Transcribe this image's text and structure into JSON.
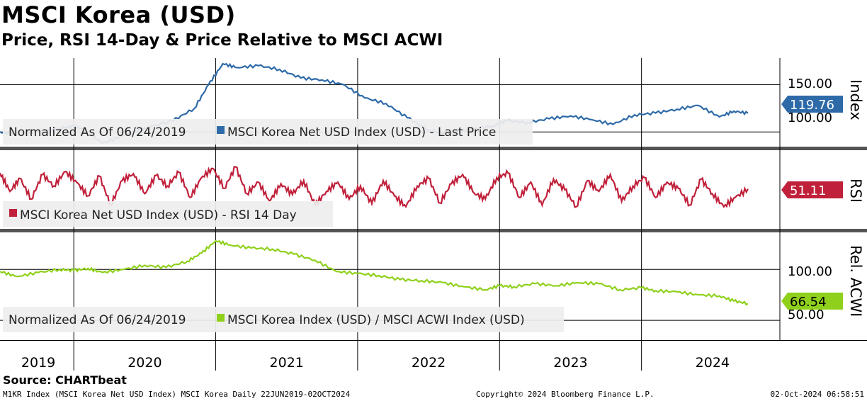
{
  "title": "MSCI Korea (USD)",
  "subtitle": "Price, RSI 14-Day & Price Relative to MSCI ACWI",
  "source": "Source: CHARTbeat",
  "footer": {
    "left": "M1KR Index (MSCI Korea Net USD Index) MSCI Korea  Daily 22JUN2019-02OCT2024",
    "center": "Copyright© 2024 Bloomberg Finance L.P.",
    "right": "02-Oct-2024 06:58:51"
  },
  "colors": {
    "price": "#2e6aa8",
    "rsi": "#c0203a",
    "rel": "#8fd01c"
  },
  "chart_data": [
    {
      "type": "line",
      "panel": "price",
      "panel_label": "Index",
      "legend_note": "Normalized As Of 06/24/2019",
      "legend": "MSCI Korea Net USD Index (USD) - Last Price",
      "last_value": "119.76",
      "yticks": [
        "150.00",
        "100.00"
      ],
      "ytick_values": [
        150,
        100
      ],
      "ylim": [
        86,
        178
      ],
      "x": [
        2019.48,
        2019.6,
        2019.75,
        2019.9,
        2020.0,
        2020.08,
        2020.2,
        2020.35,
        2020.5,
        2020.7,
        2020.85,
        2020.95,
        2021.05,
        2021.15,
        2021.3,
        2021.45,
        2021.6,
        2021.75,
        2021.9,
        2022.05,
        2022.2,
        2022.35,
        2022.5,
        2022.65,
        2022.8,
        2022.95,
        2023.05,
        2023.2,
        2023.35,
        2023.5,
        2023.65,
        2023.8,
        2023.95,
        2024.1,
        2024.25,
        2024.4,
        2024.55,
        2024.65,
        2024.75
      ],
      "values": [
        100,
        97,
        100,
        104,
        106,
        102,
        88,
        96,
        104,
        112,
        125,
        150,
        172,
        168,
        170,
        166,
        157,
        155,
        150,
        136,
        130,
        115,
        102,
        98,
        103,
        106,
        112,
        110,
        114,
        117,
        113,
        108,
        118,
        120,
        124,
        128,
        116,
        122,
        119.76
      ]
    },
    {
      "type": "line",
      "panel": "rsi",
      "panel_label": "RSI",
      "legend": "MSCI Korea Net USD Index (USD) - RSI 14 Day",
      "last_value": "51.11",
      "ylim": [
        0,
        100
      ],
      "x": [
        2019.48,
        2019.55,
        2019.62,
        2019.7,
        2019.78,
        2019.86,
        2019.94,
        2020.02,
        2020.1,
        2020.18,
        2020.26,
        2020.34,
        2020.42,
        2020.5,
        2020.58,
        2020.66,
        2020.74,
        2020.82,
        2020.9,
        2020.98,
        2021.06,
        2021.14,
        2021.22,
        2021.3,
        2021.38,
        2021.46,
        2021.54,
        2021.62,
        2021.7,
        2021.78,
        2021.86,
        2021.94,
        2022.02,
        2022.1,
        2022.18,
        2022.26,
        2022.34,
        2022.42,
        2022.5,
        2022.58,
        2022.66,
        2022.74,
        2022.82,
        2022.9,
        2022.98,
        2023.06,
        2023.14,
        2023.22,
        2023.3,
        2023.38,
        2023.46,
        2023.54,
        2023.62,
        2023.7,
        2023.78,
        2023.86,
        2023.94,
        2024.02,
        2024.1,
        2024.18,
        2024.26,
        2024.34,
        2024.42,
        2024.5,
        2024.58,
        2024.66,
        2024.75
      ],
      "values": [
        72,
        48,
        65,
        38,
        70,
        55,
        74,
        60,
        42,
        68,
        30,
        62,
        71,
        45,
        69,
        55,
        73,
        40,
        66,
        78,
        52,
        80,
        45,
        60,
        35,
        58,
        44,
        62,
        30,
        48,
        60,
        38,
        55,
        32,
        62,
        42,
        28,
        55,
        65,
        33,
        58,
        70,
        46,
        38,
        66,
        72,
        40,
        60,
        30,
        64,
        50,
        28,
        62,
        48,
        70,
        35,
        55,
        66,
        40,
        60,
        52,
        30,
        64,
        45,
        28,
        40,
        51.11
      ]
    },
    {
      "type": "line",
      "panel": "relative",
      "panel_label": "Rel. ACWI",
      "legend_note": "Normalized As Of 06/24/2019",
      "legend": "MSCI Korea Index (USD) / MSCI ACWI Index (USD)",
      "last_value": "66.54",
      "yticks": [
        "100.00",
        "50.00"
      ],
      "ytick_values": [
        100,
        50
      ],
      "ylim": [
        32,
        135
      ],
      "x": [
        2019.48,
        2019.6,
        2019.75,
        2019.9,
        2020.0,
        2020.1,
        2020.2,
        2020.35,
        2020.5,
        2020.65,
        2020.8,
        2020.9,
        2021.0,
        2021.1,
        2021.25,
        2021.4,
        2021.55,
        2021.7,
        2021.85,
        2022.0,
        2022.15,
        2022.3,
        2022.45,
        2022.6,
        2022.75,
        2022.9,
        2023.0,
        2023.1,
        2023.25,
        2023.4,
        2023.55,
        2023.7,
        2023.85,
        2024.0,
        2024.1,
        2024.25,
        2024.4,
        2024.55,
        2024.65,
        2024.75
      ],
      "values": [
        98,
        93,
        97,
        100,
        99,
        101,
        97,
        100,
        104,
        102,
        108,
        116,
        128,
        124,
        121,
        120,
        115,
        109,
        98,
        96,
        94,
        90,
        89,
        87,
        83,
        80,
        84,
        83,
        86,
        84,
        87,
        86,
        80,
        82,
        79,
        78,
        75,
        74,
        69,
        66.54
      ]
    }
  ],
  "x_axis": {
    "years": [
      "2019",
      "2020",
      "2021",
      "2022",
      "2023",
      "2024"
    ],
    "year_centers": [
      2019.75,
      2020.5,
      2021.5,
      2022.5,
      2023.5,
      2024.5
    ],
    "boundaries": [
      2020.0,
      2021.0,
      2022.0,
      2023.0,
      2024.0
    ],
    "xlim": [
      2019.48,
      2024.97
    ]
  }
}
